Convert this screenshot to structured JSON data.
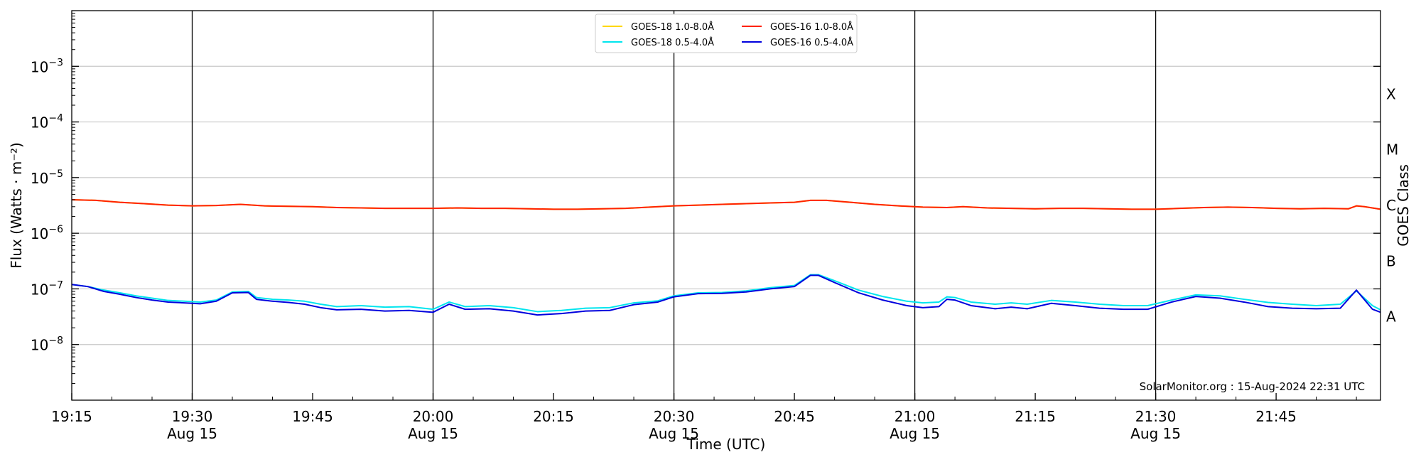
{
  "chart_data": {
    "type": "line",
    "xlabel": "Time (UTC)",
    "ylabel": "Flux (Watts · m⁻²)",
    "ylabel_right": "GOES Class",
    "ylim_log10": [
      -9,
      -2
    ],
    "yscale": "log",
    "xlim": [
      "19:15",
      "21:58"
    ],
    "grid": "horizontal at decades, vertical at half-hours",
    "legend_position": "top-center",
    "x_ticks": [
      {
        "time": "19:15",
        "label": "19:15",
        "sublabel": ""
      },
      {
        "time": "19:30",
        "label": "19:30",
        "sublabel": "Aug 15"
      },
      {
        "time": "19:45",
        "label": "19:45",
        "sublabel": ""
      },
      {
        "time": "20:00",
        "label": "20:00",
        "sublabel": "Aug 15"
      },
      {
        "time": "20:15",
        "label": "20:15",
        "sublabel": ""
      },
      {
        "time": "20:30",
        "label": "20:30",
        "sublabel": "Aug 15"
      },
      {
        "time": "20:45",
        "label": "20:45",
        "sublabel": ""
      },
      {
        "time": "21:00",
        "label": "21:00",
        "sublabel": "Aug 15"
      },
      {
        "time": "21:15",
        "label": "21:15",
        "sublabel": ""
      },
      {
        "time": "21:30",
        "label": "21:30",
        "sublabel": "Aug 15"
      },
      {
        "time": "21:45",
        "label": "21:45",
        "sublabel": ""
      }
    ],
    "vertical_lines": [
      "19:30",
      "20:00",
      "20:30",
      "21:00",
      "21:30"
    ],
    "y_ticks": [
      {
        "exp": -8,
        "base": "10",
        "sup": "−8"
      },
      {
        "exp": -7,
        "base": "10",
        "sup": "−7"
      },
      {
        "exp": -6,
        "base": "10",
        "sup": "−6"
      },
      {
        "exp": -5,
        "base": "10",
        "sup": "−5"
      },
      {
        "exp": -4,
        "base": "10",
        "sup": "−4"
      },
      {
        "exp": -3,
        "base": "10",
        "sup": "−3"
      }
    ],
    "goes_classes": [
      {
        "label": "A",
        "exp": -7.5
      },
      {
        "label": "B",
        "exp": -6.5
      },
      {
        "label": "C",
        "exp": -5.5
      },
      {
        "label": "M",
        "exp": -4.5
      },
      {
        "label": "X",
        "exp": -3.5
      }
    ],
    "legend": [
      {
        "name": "GOES-18 1.0-8.0Å",
        "color": "#ffd700"
      },
      {
        "name": "GOES-18 0.5-4.0Å",
        "color": "#00e5ee"
      },
      {
        "name": "GOES-16 1.0-8.0Å",
        "color": "#ff2200"
      },
      {
        "name": "GOES-16 0.5-4.0Å",
        "color": "#0000dd"
      }
    ],
    "series": [
      {
        "name": "GOES-18 1.0-8.0Å",
        "color": "#ffd700",
        "points": [
          [
            "19:15",
            4e-06
          ],
          [
            "19:18",
            3.9e-06
          ],
          [
            "19:21",
            3.6e-06
          ],
          [
            "19:24",
            3.4e-06
          ],
          [
            "19:27",
            3.2e-06
          ],
          [
            "19:30",
            3.1e-06
          ],
          [
            "19:33",
            3.15e-06
          ],
          [
            "19:36",
            3.3e-06
          ],
          [
            "19:39",
            3.1e-06
          ],
          [
            "19:42",
            3.05e-06
          ],
          [
            "19:45",
            3e-06
          ],
          [
            "19:48",
            2.9e-06
          ],
          [
            "19:51",
            2.85e-06
          ],
          [
            "19:54",
            2.8e-06
          ],
          [
            "19:57",
            2.8e-06
          ],
          [
            "20:00",
            2.8e-06
          ],
          [
            "20:03",
            2.85e-06
          ],
          [
            "20:06",
            2.8e-06
          ],
          [
            "20:09",
            2.8e-06
          ],
          [
            "20:12",
            2.75e-06
          ],
          [
            "20:15",
            2.7e-06
          ],
          [
            "20:18",
            2.7e-06
          ],
          [
            "20:21",
            2.75e-06
          ],
          [
            "20:24",
            2.8e-06
          ],
          [
            "20:27",
            2.95e-06
          ],
          [
            "20:30",
            3.1e-06
          ],
          [
            "20:33",
            3.2e-06
          ],
          [
            "20:36",
            3.3e-06
          ],
          [
            "20:39",
            3.4e-06
          ],
          [
            "20:42",
            3.5e-06
          ],
          [
            "20:45",
            3.6e-06
          ],
          [
            "20:47",
            3.9e-06
          ],
          [
            "20:49",
            3.9e-06
          ],
          [
            "20:52",
            3.6e-06
          ],
          [
            "20:55",
            3.3e-06
          ],
          [
            "20:58",
            3.1e-06
          ],
          [
            "21:01",
            2.95e-06
          ],
          [
            "21:04",
            2.9e-06
          ],
          [
            "21:06",
            3e-06
          ],
          [
            "21:09",
            2.85e-06
          ],
          [
            "21:12",
            2.8e-06
          ],
          [
            "21:15",
            2.75e-06
          ],
          [
            "21:18",
            2.8e-06
          ],
          [
            "21:21",
            2.8e-06
          ],
          [
            "21:24",
            2.75e-06
          ],
          [
            "21:27",
            2.7e-06
          ],
          [
            "21:30",
            2.7e-06
          ],
          [
            "21:33",
            2.8e-06
          ],
          [
            "21:36",
            2.9e-06
          ],
          [
            "21:39",
            2.95e-06
          ],
          [
            "21:42",
            2.9e-06
          ],
          [
            "21:45",
            2.8e-06
          ],
          [
            "21:48",
            2.75e-06
          ],
          [
            "21:51",
            2.8e-06
          ],
          [
            "21:54",
            2.75e-06
          ],
          [
            "21:55",
            3.1e-06
          ],
          [
            "21:56",
            3e-06
          ],
          [
            "21:58",
            2.7e-06
          ]
        ]
      },
      {
        "name": "GOES-16 1.0-8.0Å",
        "color": "#ff2200",
        "points": [
          [
            "19:15",
            4e-06
          ],
          [
            "19:18",
            3.9e-06
          ],
          [
            "19:21",
            3.6e-06
          ],
          [
            "19:24",
            3.4e-06
          ],
          [
            "19:27",
            3.2e-06
          ],
          [
            "19:30",
            3.1e-06
          ],
          [
            "19:33",
            3.15e-06
          ],
          [
            "19:36",
            3.3e-06
          ],
          [
            "19:39",
            3.1e-06
          ],
          [
            "19:42",
            3.05e-06
          ],
          [
            "19:45",
            3e-06
          ],
          [
            "19:48",
            2.9e-06
          ],
          [
            "19:51",
            2.85e-06
          ],
          [
            "19:54",
            2.8e-06
          ],
          [
            "19:57",
            2.8e-06
          ],
          [
            "20:00",
            2.8e-06
          ],
          [
            "20:03",
            2.85e-06
          ],
          [
            "20:06",
            2.8e-06
          ],
          [
            "20:09",
            2.8e-06
          ],
          [
            "20:12",
            2.75e-06
          ],
          [
            "20:15",
            2.7e-06
          ],
          [
            "20:18",
            2.7e-06
          ],
          [
            "20:21",
            2.75e-06
          ],
          [
            "20:24",
            2.8e-06
          ],
          [
            "20:27",
            2.95e-06
          ],
          [
            "20:30",
            3.1e-06
          ],
          [
            "20:33",
            3.2e-06
          ],
          [
            "20:36",
            3.3e-06
          ],
          [
            "20:39",
            3.4e-06
          ],
          [
            "20:42",
            3.5e-06
          ],
          [
            "20:45",
            3.6e-06
          ],
          [
            "20:47",
            3.9e-06
          ],
          [
            "20:49",
            3.9e-06
          ],
          [
            "20:52",
            3.6e-06
          ],
          [
            "20:55",
            3.3e-06
          ],
          [
            "20:58",
            3.1e-06
          ],
          [
            "21:01",
            2.95e-06
          ],
          [
            "21:04",
            2.9e-06
          ],
          [
            "21:06",
            3e-06
          ],
          [
            "21:09",
            2.85e-06
          ],
          [
            "21:12",
            2.8e-06
          ],
          [
            "21:15",
            2.75e-06
          ],
          [
            "21:18",
            2.8e-06
          ],
          [
            "21:21",
            2.8e-06
          ],
          [
            "21:24",
            2.75e-06
          ],
          [
            "21:27",
            2.7e-06
          ],
          [
            "21:30",
            2.7e-06
          ],
          [
            "21:33",
            2.8e-06
          ],
          [
            "21:36",
            2.9e-06
          ],
          [
            "21:39",
            2.95e-06
          ],
          [
            "21:42",
            2.9e-06
          ],
          [
            "21:45",
            2.8e-06
          ],
          [
            "21:48",
            2.75e-06
          ],
          [
            "21:51",
            2.8e-06
          ],
          [
            "21:54",
            2.75e-06
          ],
          [
            "21:55",
            3.1e-06
          ],
          [
            "21:56",
            3e-06
          ],
          [
            "21:58",
            2.7e-06
          ]
        ]
      },
      {
        "name": "GOES-18 0.5-4.0Å",
        "color": "#00e5ee",
        "points": [
          [
            "19:15",
            1.2e-07
          ],
          [
            "19:17",
            1.1e-07
          ],
          [
            "19:19",
            9.5e-08
          ],
          [
            "19:21",
            8.5e-08
          ],
          [
            "19:23",
            7.5e-08
          ],
          [
            "19:25",
            6.8e-08
          ],
          [
            "19:27",
            6.2e-08
          ],
          [
            "19:29",
            6e-08
          ],
          [
            "19:31",
            5.8e-08
          ],
          [
            "19:33",
            6.3e-08
          ],
          [
            "19:35",
            8.8e-08
          ],
          [
            "19:37",
            9e-08
          ],
          [
            "19:38",
            7e-08
          ],
          [
            "19:40",
            6.5e-08
          ],
          [
            "19:42",
            6.3e-08
          ],
          [
            "19:44",
            6e-08
          ],
          [
            "19:46",
            5.3e-08
          ],
          [
            "19:48",
            4.8e-08
          ],
          [
            "19:51",
            5e-08
          ],
          [
            "19:54",
            4.7e-08
          ],
          [
            "19:57",
            4.8e-08
          ],
          [
            "20:00",
            4.3e-08
          ],
          [
            "20:02",
            5.8e-08
          ],
          [
            "20:04",
            4.8e-08
          ],
          [
            "20:07",
            5e-08
          ],
          [
            "20:10",
            4.6e-08
          ],
          [
            "20:13",
            3.9e-08
          ],
          [
            "20:16",
            4.1e-08
          ],
          [
            "20:19",
            4.5e-08
          ],
          [
            "20:22",
            4.6e-08
          ],
          [
            "20:25",
            5.6e-08
          ],
          [
            "20:28",
            6.1e-08
          ],
          [
            "20:30",
            7.5e-08
          ],
          [
            "20:33",
            8.5e-08
          ],
          [
            "20:36",
            8.6e-08
          ],
          [
            "20:39",
            9.2e-08
          ],
          [
            "20:42",
            1.05e-07
          ],
          [
            "20:45",
            1.15e-07
          ],
          [
            "20:47",
            1.8e-07
          ],
          [
            "20:48",
            1.8e-07
          ],
          [
            "20:50",
            1.4e-07
          ],
          [
            "20:53",
            9.5e-08
          ],
          [
            "20:56",
            7.3e-08
          ],
          [
            "20:59",
            6e-08
          ],
          [
            "21:01",
            5.6e-08
          ],
          [
            "21:03",
            5.8e-08
          ],
          [
            "21:04",
            7.2e-08
          ],
          [
            "21:05",
            7e-08
          ],
          [
            "21:07",
            5.8e-08
          ],
          [
            "21:10",
            5.3e-08
          ],
          [
            "21:12",
            5.6e-08
          ],
          [
            "21:14",
            5.3e-08
          ],
          [
            "21:17",
            6.2e-08
          ],
          [
            "21:20",
            5.8e-08
          ],
          [
            "21:23",
            5.3e-08
          ],
          [
            "21:26",
            5e-08
          ],
          [
            "21:29",
            5e-08
          ],
          [
            "21:32",
            6.3e-08
          ],
          [
            "21:35",
            7.8e-08
          ],
          [
            "21:38",
            7.5e-08
          ],
          [
            "21:41",
            6.5e-08
          ],
          [
            "21:44",
            5.7e-08
          ],
          [
            "21:47",
            5.3e-08
          ],
          [
            "21:50",
            5e-08
          ],
          [
            "21:53",
            5.3e-08
          ],
          [
            "21:55",
            9.2e-08
          ],
          [
            "21:57",
            5e-08
          ],
          [
            "21:58",
            4.2e-08
          ]
        ]
      },
      {
        "name": "GOES-16 0.5-4.0Å",
        "color": "#0000dd",
        "points": [
          [
            "19:15",
            1.2e-07
          ],
          [
            "19:17",
            1.1e-07
          ],
          [
            "19:19",
            9e-08
          ],
          [
            "19:21",
            8e-08
          ],
          [
            "19:23",
            7e-08
          ],
          [
            "19:25",
            6.3e-08
          ],
          [
            "19:27",
            5.8e-08
          ],
          [
            "19:29",
            5.6e-08
          ],
          [
            "19:31",
            5.4e-08
          ],
          [
            "19:33",
            6e-08
          ],
          [
            "19:35",
            8.5e-08
          ],
          [
            "19:37",
            8.6e-08
          ],
          [
            "19:38",
            6.5e-08
          ],
          [
            "19:40",
            6e-08
          ],
          [
            "19:42",
            5.7e-08
          ],
          [
            "19:44",
            5.3e-08
          ],
          [
            "19:46",
            4.6e-08
          ],
          [
            "19:48",
            4.2e-08
          ],
          [
            "19:51",
            4.3e-08
          ],
          [
            "19:54",
            4e-08
          ],
          [
            "19:57",
            4.1e-08
          ],
          [
            "20:00",
            3.8e-08
          ],
          [
            "20:02",
            5.3e-08
          ],
          [
            "20:04",
            4.3e-08
          ],
          [
            "20:07",
            4.4e-08
          ],
          [
            "20:10",
            4e-08
          ],
          [
            "20:13",
            3.4e-08
          ],
          [
            "20:16",
            3.6e-08
          ],
          [
            "20:19",
            4e-08
          ],
          [
            "20:22",
            4.1e-08
          ],
          [
            "20:25",
            5.2e-08
          ],
          [
            "20:28",
            5.8e-08
          ],
          [
            "20:30",
            7.2e-08
          ],
          [
            "20:33",
            8.2e-08
          ],
          [
            "20:36",
            8.3e-08
          ],
          [
            "20:39",
            8.8e-08
          ],
          [
            "20:42",
            1e-07
          ],
          [
            "20:45",
            1.1e-07
          ],
          [
            "20:47",
            1.75e-07
          ],
          [
            "20:48",
            1.75e-07
          ],
          [
            "20:50",
            1.3e-07
          ],
          [
            "20:53",
            8.5e-08
          ],
          [
            "20:56",
            6.3e-08
          ],
          [
            "20:59",
            5e-08
          ],
          [
            "21:01",
            4.6e-08
          ],
          [
            "21:03",
            4.8e-08
          ],
          [
            "21:04",
            6.5e-08
          ],
          [
            "21:05",
            6.3e-08
          ],
          [
            "21:07",
            5e-08
          ],
          [
            "21:10",
            4.4e-08
          ],
          [
            "21:12",
            4.7e-08
          ],
          [
            "21:14",
            4.4e-08
          ],
          [
            "21:17",
            5.5e-08
          ],
          [
            "21:20",
            5e-08
          ],
          [
            "21:23",
            4.5e-08
          ],
          [
            "21:26",
            4.3e-08
          ],
          [
            "21:29",
            4.3e-08
          ],
          [
            "21:32",
            5.8e-08
          ],
          [
            "21:35",
            7.3e-08
          ],
          [
            "21:38",
            6.8e-08
          ],
          [
            "21:41",
            5.8e-08
          ],
          [
            "21:44",
            4.8e-08
          ],
          [
            "21:47",
            4.5e-08
          ],
          [
            "21:50",
            4.4e-08
          ],
          [
            "21:53",
            4.5e-08
          ],
          [
            "21:55",
            9.5e-08
          ],
          [
            "21:57",
            4.3e-08
          ],
          [
            "21:58",
            3.8e-08
          ]
        ]
      }
    ],
    "credit": "SolarMonitor.org : 15-Aug-2024 22:31 UTC"
  }
}
